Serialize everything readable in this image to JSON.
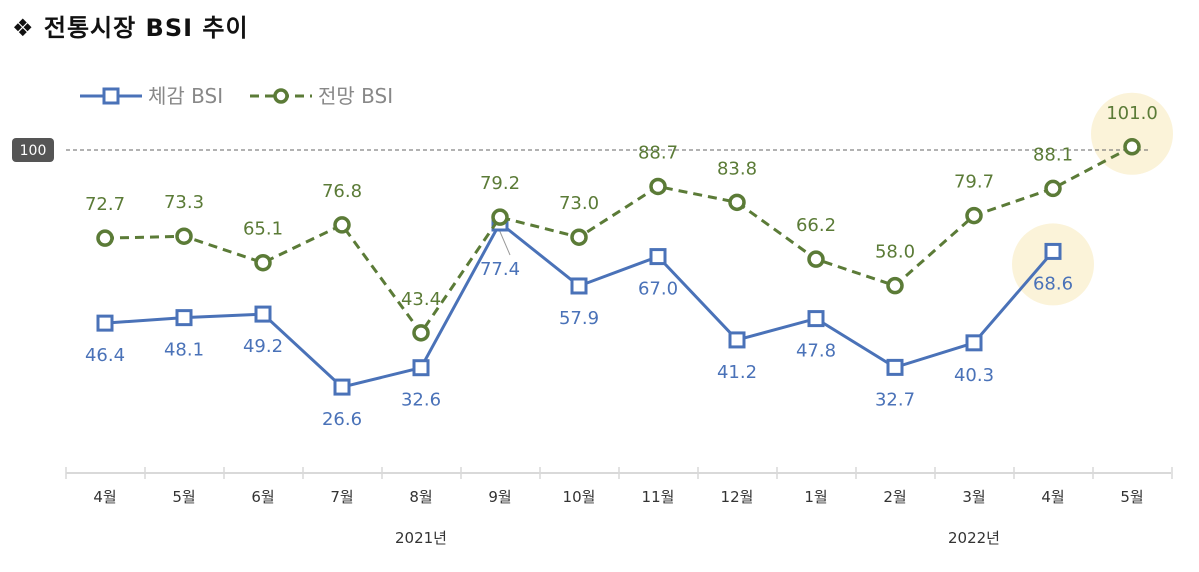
{
  "title": "❖  전통시장 BSI 추이",
  "chart_data": {
    "type": "line",
    "title": "전통시장 BSI 추이",
    "categories": [
      "4월",
      "5월",
      "6월",
      "7월",
      "8월",
      "9월",
      "10월",
      "11월",
      "12월",
      "1월",
      "2월",
      "3월",
      "4월",
      "5월"
    ],
    "year_labels": [
      {
        "label": "2021년",
        "span": [
          0,
          8
        ]
      },
      {
        "label": "2022년",
        "span": [
          9,
          13
        ]
      }
    ],
    "series": [
      {
        "name": "체감 BSI",
        "color": "#4a72b8",
        "marker": "square",
        "style": "solid",
        "values": [
          46.4,
          48.1,
          49.2,
          26.6,
          32.6,
          77.4,
          57.9,
          67.0,
          41.2,
          47.8,
          32.7,
          40.3,
          68.6,
          null
        ],
        "labels": [
          "46.4",
          "48.1",
          "49.2",
          "26.6",
          "32.6",
          "77.4",
          "57.9",
          "67.0",
          "41.2",
          "47.8",
          "32.7",
          "40.3",
          "68.6",
          ""
        ]
      },
      {
        "name": "전망 BSI",
        "color": "#5b7b37",
        "marker": "circle",
        "style": "dashed",
        "values": [
          72.7,
          73.3,
          65.1,
          76.8,
          43.4,
          79.2,
          73.0,
          88.7,
          83.8,
          66.2,
          58.0,
          79.7,
          88.1,
          101.0
        ],
        "labels": [
          "72.7",
          "73.3",
          "65.1",
          "76.8",
          "43.4",
          "79.2",
          "73.0",
          "88.7",
          "83.8",
          "66.2",
          "58.0",
          "79.7",
          "88.1",
          "101.0"
        ]
      }
    ],
    "reference_line": {
      "value": 100,
      "label": "100"
    },
    "highlights": [
      {
        "series": 0,
        "index": 12
      },
      {
        "series": 1,
        "index": 13
      }
    ],
    "highlight_color": "#fbf3d9",
    "ylim": [
      0,
      100
    ],
    "grid": false,
    "legend": "top-left"
  }
}
